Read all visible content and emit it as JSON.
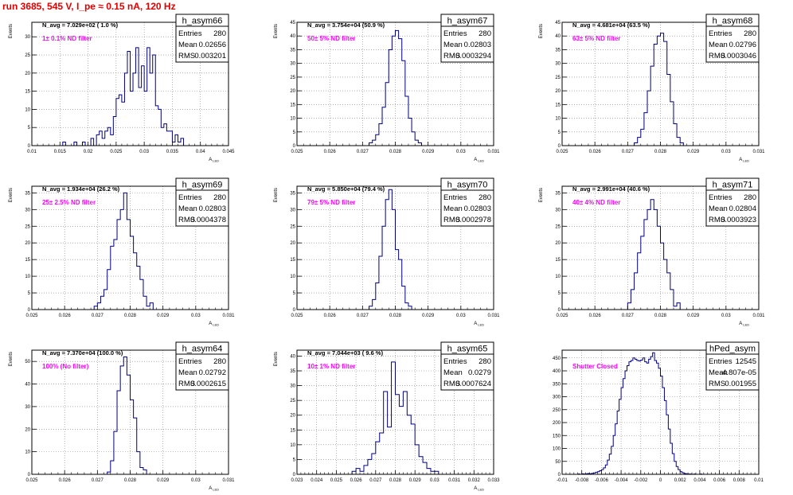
{
  "page_title": "run 3685,   545 V, I_pe ≈ 0.15 nA, 120 Hz",
  "stats_labels": {
    "entries": "Entries",
    "mean": "Mean",
    "rms": "RMS"
  },
  "colors": {
    "histogram": "#000080",
    "annotation": "#ff00ff",
    "title": "#e00000",
    "grid": "#808080"
  },
  "chart_data": [
    {
      "type": "histogram",
      "name": "h_asym66",
      "stats": {
        "entries": "280",
        "mean": "0.02656",
        "rms": "0.003201"
      },
      "navg": "N_avg = 7.029e+02 ( 1.0 %)",
      "filter": "1± 0.1% ND filter",
      "ylabel": "Events",
      "xlabel": "A_LED",
      "xlim": [
        0.01,
        0.045
      ],
      "ylim": [
        0,
        34
      ],
      "grid": true,
      "xticks": [
        0.01,
        0.015,
        0.02,
        0.025,
        0.03,
        0.035,
        0.04,
        0.045
      ],
      "xtick_labels": [
        "0.01",
        "0.015",
        "0.02",
        "0.025",
        "0.03",
        "0.035",
        "0.04",
        "0.045"
      ],
      "yticks": [
        0,
        5,
        10,
        15,
        20,
        25,
        30
      ],
      "bins": {
        "start": 0.015,
        "width": 0.0005,
        "counts": [
          0,
          1,
          0,
          0,
          0,
          1,
          0,
          0,
          1,
          0,
          0,
          2,
          0,
          3,
          4,
          2,
          4,
          5,
          3,
          8,
          13,
          14,
          12,
          20,
          26,
          15,
          20,
          27,
          16,
          22,
          15,
          27,
          20,
          25,
          11,
          10,
          5,
          6,
          4,
          4,
          1,
          3,
          1,
          2,
          0
        ]
      }
    },
    {
      "type": "histogram",
      "name": "h_asym67",
      "stats": {
        "entries": "280",
        "mean": "0.02803",
        "rms": "0.0003294"
      },
      "navg": "N_avg = 3.754e+04 (50.9 %)",
      "filter": "50± 5% ND filter",
      "ylabel": "Events",
      "xlabel": "A_LED",
      "xlim": [
        0.025,
        0.031
      ],
      "ylim": [
        0,
        45
      ],
      "grid": true,
      "xticks": [
        0.025,
        0.026,
        0.027,
        0.028,
        0.029,
        0.03,
        0.031
      ],
      "xtick_labels": [
        "0.025",
        "0.026",
        "0.027",
        "0.028",
        "0.029",
        "0.03",
        "0.031"
      ],
      "yticks": [
        0,
        5,
        10,
        15,
        20,
        25,
        30,
        35,
        40,
        45
      ],
      "bins": {
        "start": 0.0272,
        "width": 0.0001,
        "counts": [
          1,
          2,
          4,
          8,
          14,
          23,
          35,
          40,
          42,
          39,
          31,
          18,
          10,
          5,
          2,
          1
        ]
      }
    },
    {
      "type": "histogram",
      "name": "h_asym68",
      "stats": {
        "entries": "280",
        "mean": "0.02796",
        "rms": "0.0003046"
      },
      "navg": "N_avg = 4.681e+04 (63.5 %)",
      "filter": "63± 5% ND filter",
      "ylabel": "Events",
      "xlabel": "A_LED",
      "xlim": [
        0.025,
        0.031
      ],
      "ylim": [
        0,
        45
      ],
      "grid": true,
      "xticks": [
        0.025,
        0.026,
        0.027,
        0.028,
        0.029,
        0.03,
        0.031
      ],
      "xtick_labels": [
        "0.025",
        "0.026",
        "0.027",
        "0.028",
        "0.029",
        "0.03",
        "0.031"
      ],
      "yticks": [
        0,
        5,
        10,
        15,
        20,
        25,
        30,
        35,
        40,
        45
      ],
      "bins": {
        "start": 0.0272,
        "width": 0.0001,
        "counts": [
          1,
          3,
          6,
          12,
          20,
          29,
          37,
          40,
          41,
          38,
          26,
          16,
          8,
          3,
          1
        ]
      }
    },
    {
      "type": "histogram",
      "name": "h_asym69",
      "stats": {
        "entries": "280",
        "mean": "0.02803",
        "rms": "0.0004378"
      },
      "navg": "N_avg = 1.934e+04 (26.2 %)",
      "filter": "25± 2.5% ND filter",
      "ylabel": "Events",
      "xlabel": "A_LED",
      "xlim": [
        0.025,
        0.031
      ],
      "ylim": [
        0,
        37
      ],
      "grid": true,
      "xticks": [
        0.025,
        0.026,
        0.027,
        0.028,
        0.029,
        0.03,
        0.031
      ],
      "xtick_labels": [
        "0.025",
        "0.026",
        "0.027",
        "0.028",
        "0.029",
        "0.03",
        "0.031"
      ],
      "yticks": [
        0,
        5,
        10,
        15,
        20,
        25,
        30,
        35
      ],
      "bins": {
        "start": 0.0269,
        "width": 0.0001,
        "counts": [
          1,
          2,
          4,
          6,
          12,
          19,
          21,
          27,
          30,
          35,
          27,
          22,
          17,
          13,
          9,
          4,
          1,
          2
        ]
      }
    },
    {
      "type": "histogram",
      "name": "h_asym70",
      "stats": {
        "entries": "280",
        "mean": "0.02803",
        "rms": "0.0002978"
      },
      "navg": "N_avg = 5.850e+04 (79.4 %)",
      "filter": "79± 5% ND filter",
      "ylabel": "Events",
      "xlabel": "A_LED",
      "xlim": [
        0.025,
        0.031
      ],
      "ylim": [
        0,
        37
      ],
      "grid": true,
      "xticks": [
        0.025,
        0.026,
        0.027,
        0.028,
        0.029,
        0.03,
        0.031
      ],
      "xtick_labels": [
        "0.025",
        "0.026",
        "0.027",
        "0.028",
        "0.029",
        "0.03",
        "0.031"
      ],
      "yticks": [
        0,
        5,
        10,
        15,
        20,
        25,
        30,
        35
      ],
      "bins": {
        "start": 0.0272,
        "width": 0.0001,
        "counts": [
          1,
          3,
          8,
          16,
          25,
          33,
          36,
          30,
          18,
          15,
          7,
          2,
          1
        ]
      }
    },
    {
      "type": "histogram",
      "name": "h_asym71",
      "stats": {
        "entries": "280",
        "mean": "0.02804",
        "rms": "0.0003923"
      },
      "navg": "N_avg = 2.991e+04 (40.6 %)",
      "filter": "40± 4% ND filter",
      "ylabel": "Events",
      "xlabel": "A_LED",
      "xlim": [
        0.025,
        0.031
      ],
      "ylim": [
        0,
        37
      ],
      "grid": true,
      "xticks": [
        0.025,
        0.026,
        0.027,
        0.028,
        0.029,
        0.03,
        0.031
      ],
      "xtick_labels": [
        "0.025",
        "0.026",
        "0.027",
        "0.028",
        "0.029",
        "0.03",
        "0.031"
      ],
      "yticks": [
        0,
        5,
        10,
        15,
        20,
        25,
        30,
        35
      ],
      "bins": {
        "start": 0.027,
        "width": 0.0001,
        "counts": [
          2,
          6,
          11,
          17,
          22,
          27,
          30,
          33,
          30,
          25,
          20,
          15,
          11,
          6,
          1,
          2
        ]
      }
    },
    {
      "type": "histogram",
      "name": "h_asym64",
      "stats": {
        "entries": "280",
        "mean": "0.02792",
        "rms": "0.0002615"
      },
      "navg": "N_avg = 7.370e+04 (100.0 %)",
      "filter": "100% (No filter)",
      "ylabel": "Events",
      "xlabel": "A_LED",
      "xlim": [
        0.025,
        0.031
      ],
      "ylim": [
        0,
        55
      ],
      "grid": true,
      "xticks": [
        0.025,
        0.026,
        0.027,
        0.028,
        0.029,
        0.03,
        0.031
      ],
      "xtick_labels": [
        "0.025",
        "0.026",
        "0.027",
        "0.028",
        "0.029",
        "0.03",
        "0.031"
      ],
      "yticks": [
        0,
        10,
        20,
        30,
        40,
        50
      ],
      "bins": {
        "start": 0.0273,
        "width": 0.0001,
        "counts": [
          1,
          6,
          19,
          37,
          48,
          52,
          44,
          33,
          25,
          10,
          3,
          2
        ]
      }
    },
    {
      "type": "histogram",
      "name": "h_asym65",
      "stats": {
        "entries": "280",
        "mean": "0.0279",
        "rms": "0.0007624"
      },
      "navg": "N_avg = 7.044e+03 ( 9.6 %)",
      "filter": "10± 1% ND filter",
      "ylabel": "Events",
      "xlabel": "A_LED",
      "xlim": [
        0.023,
        0.033
      ],
      "ylim": [
        0,
        42
      ],
      "grid": true,
      "xticks": [
        0.023,
        0.024,
        0.025,
        0.026,
        0.027,
        0.028,
        0.029,
        0.03,
        0.031,
        0.032,
        0.033
      ],
      "xtick_labels": [
        "0.023",
        "0.024",
        "0.025",
        "0.026",
        "0.027",
        "0.028",
        "0.029",
        "0.03",
        "0.031",
        "0.032",
        "0.033"
      ],
      "yticks": [
        0,
        5,
        10,
        15,
        20,
        25,
        30,
        35,
        40
      ],
      "bins": {
        "start": 0.0258,
        "width": 0.0002,
        "counts": [
          1,
          2,
          1,
          3,
          5,
          7,
          11,
          14,
          28,
          16,
          38,
          27,
          23,
          28,
          20,
          17,
          10,
          6,
          4,
          2,
          1,
          1
        ]
      }
    },
    {
      "type": "histogram",
      "name": "hPed_asym",
      "stats": {
        "entries": "12545",
        "mean": "-4.807e-05",
        "rms": "0.001955"
      },
      "navg": "",
      "filter": "Shutter Closed",
      "ylabel": "",
      "xlabel": "",
      "xlim": [
        -0.01,
        0.01
      ],
      "ylim": [
        0,
        480
      ],
      "grid": true,
      "xticks": [
        -0.01,
        -0.008,
        -0.006,
        -0.004,
        -0.002,
        0,
        0.002,
        0.004,
        0.006,
        0.008,
        0.01
      ],
      "xtick_labels": [
        "-0.01",
        "-0.008",
        "-0.006",
        "-0.004",
        "-0.002",
        "0",
        "0.002",
        "0.004",
        "0.006",
        "0.008",
        "0.01"
      ],
      "yticks": [
        0,
        50,
        100,
        150,
        200,
        250,
        300,
        350,
        400,
        450
      ],
      "bins": {
        "start": -0.0084,
        "width": 0.0002,
        "counts": [
          1,
          0,
          2,
          1,
          2,
          3,
          2,
          4,
          5,
          8,
          10,
          14,
          18,
          25,
          36,
          55,
          78,
          108,
          150,
          195,
          245,
          290,
          335,
          370,
          400,
          420,
          435,
          440,
          450,
          445,
          440,
          438,
          442,
          450,
          435,
          430,
          445,
          455,
          470,
          440,
          430,
          410,
          380,
          335,
          285,
          230,
          175,
          120,
          80,
          50,
          30,
          18,
          10,
          6,
          3,
          2,
          1,
          1,
          0,
          1,
          0,
          0,
          1
        ]
      }
    }
  ]
}
